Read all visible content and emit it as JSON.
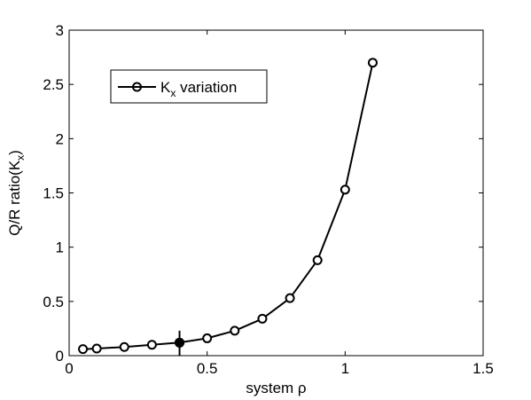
{
  "chart_data": {
    "type": "line",
    "xlabel": "system ρ",
    "ylabel_main": "Q/R ratio(K",
    "ylabel_sub": "x",
    "ylabel_close": ")",
    "xlim": [
      0,
      1.5
    ],
    "ylim": [
      0,
      3
    ],
    "xticks": [
      0,
      0.5,
      1,
      1.5
    ],
    "xtick_labels": [
      "0",
      "0.5",
      "1",
      "1.5"
    ],
    "yticks": [
      0,
      0.5,
      1,
      1.5,
      2,
      2.5,
      3
    ],
    "ytick_labels": [
      "0",
      "0.5",
      "1",
      "1.5",
      "2",
      "2.5",
      "3"
    ],
    "grid": false,
    "legend_position": "top-left",
    "series": [
      {
        "name_main": "K",
        "name_sub": "x",
        "name_rest": " variation",
        "color": "#000000",
        "marker": "open-circle",
        "x": [
          0.05,
          0.1,
          0.2,
          0.3,
          0.4,
          0.5,
          0.6,
          0.7,
          0.8,
          0.9,
          1.0,
          1.1
        ],
        "y": [
          0.06,
          0.065,
          0.08,
          0.1,
          0.12,
          0.16,
          0.23,
          0.34,
          0.53,
          0.88,
          1.53,
          2.7
        ]
      }
    ],
    "highlight": {
      "x": 0.4,
      "y": 0.12,
      "marker": "filled-circle",
      "vline_from": 0,
      "vline_to": 0.23
    }
  }
}
